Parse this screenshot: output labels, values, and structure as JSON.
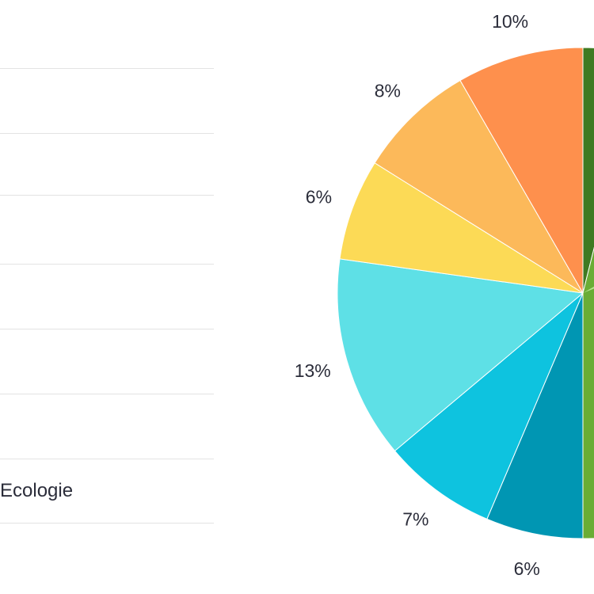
{
  "legend": {
    "visible_label": "Ecologie"
  },
  "chart_data": {
    "type": "pie",
    "title": "",
    "slices": [
      {
        "label": "",
        "value": 8,
        "color": "#3f7a22",
        "display": "",
        "start": 0,
        "end": 14
      },
      {
        "label": "",
        "value": 50,
        "color": "#6aad35",
        "display": "",
        "start": 14,
        "end": 180
      },
      {
        "label": "",
        "value": 6,
        "color": "#0096b3",
        "display": "6%",
        "start": 180,
        "end": 203
      },
      {
        "label": "",
        "value": 7,
        "color": "#0ec3df",
        "display": "7%",
        "start": 203,
        "end": 230
      },
      {
        "label": "",
        "value": 13,
        "color": "#5ee0e6",
        "display": "13%",
        "start": 230,
        "end": 278
      },
      {
        "label": "",
        "value": 6,
        "color": "#fcda56",
        "display": "6%",
        "start": 278,
        "end": 302
      },
      {
        "label": "",
        "value": 8,
        "color": "#fcb95a",
        "display": "8%",
        "start": 302,
        "end": 330
      },
      {
        "label": "",
        "value": 10,
        "color": "#fe904d",
        "display": "10%",
        "start": 330,
        "end": 360
      }
    ],
    "small_slice_color": "#b6e38e"
  }
}
